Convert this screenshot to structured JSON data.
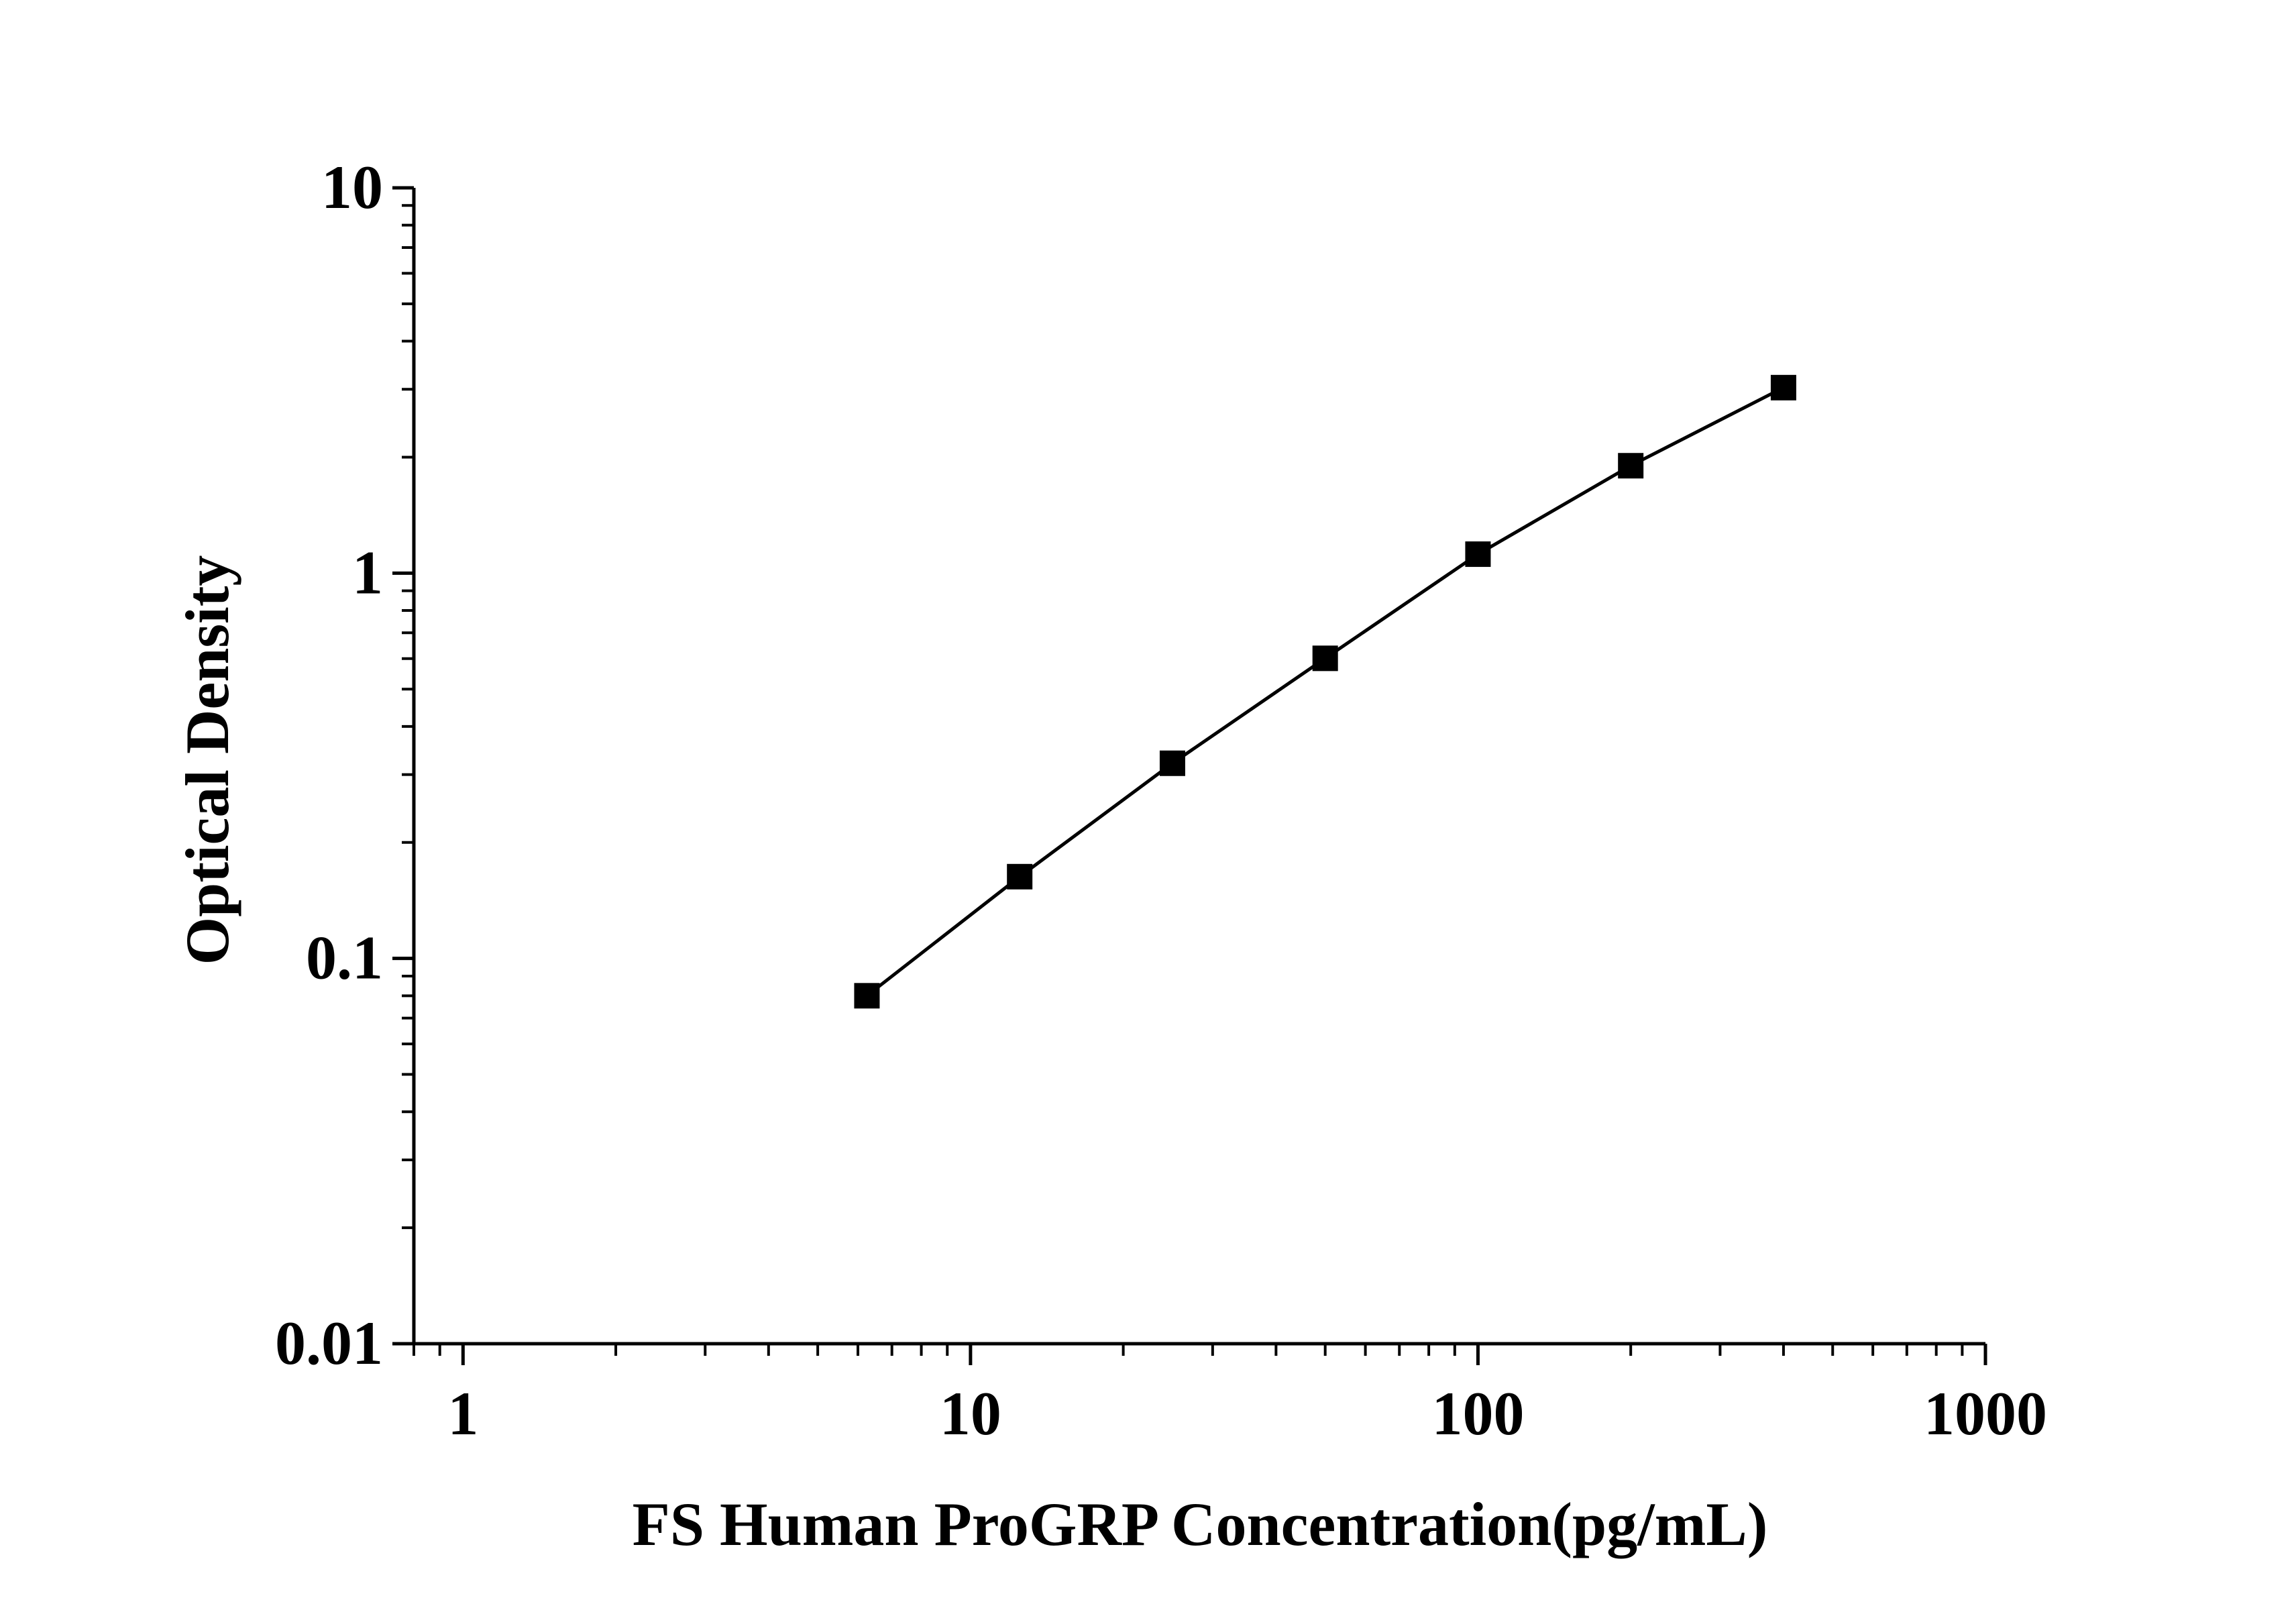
{
  "chart_data": {
    "type": "scatter",
    "title": "",
    "xlabel": "FS Human ProGRP Concentration(pg/mL)",
    "ylabel": "Optical Density",
    "x_scale": "log",
    "y_scale": "log",
    "xlim": [
      0.8,
      1000
    ],
    "ylim": [
      0.01,
      10
    ],
    "x_ticks": [
      {
        "value": 1,
        "label": "1"
      },
      {
        "value": 10,
        "label": "10"
      },
      {
        "value": 100,
        "label": "100"
      },
      {
        "value": 1000,
        "label": "1000"
      }
    ],
    "y_ticks": [
      {
        "value": 10,
        "label": "10"
      },
      {
        "value": 1,
        "label": "1"
      },
      {
        "value": 0.1,
        "label": "0.1"
      },
      {
        "value": 0.01,
        "label": "0.01"
      }
    ],
    "grid": false,
    "legend": "none",
    "series": [
      {
        "marker": "square",
        "line": true,
        "color": "#000000",
        "points": [
          {
            "x": 6.25,
            "y": 0.08
          },
          {
            "x": 12.5,
            "y": 0.163
          },
          {
            "x": 25,
            "y": 0.321
          },
          {
            "x": 50,
            "y": 0.601
          },
          {
            "x": 100,
            "y": 1.12
          },
          {
            "x": 200,
            "y": 1.9
          },
          {
            "x": 400,
            "y": 3.03
          }
        ]
      }
    ]
  }
}
